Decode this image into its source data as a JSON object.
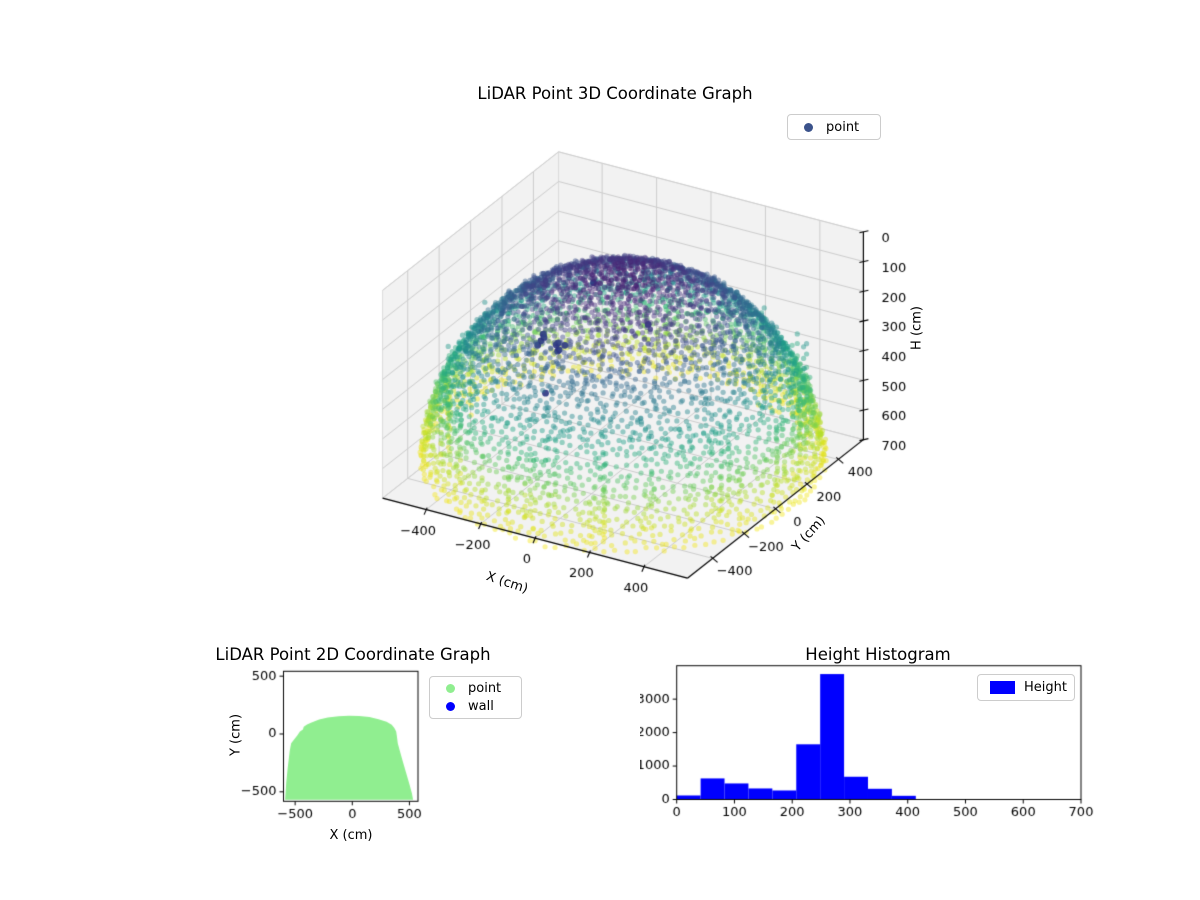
{
  "figure": {
    "background": "#ffffff"
  },
  "viridis_stops": [
    [
      68,
      1,
      84
    ],
    [
      72,
      40,
      120
    ],
    [
      62,
      74,
      137
    ],
    [
      49,
      104,
      142
    ],
    [
      38,
      130,
      142
    ],
    [
      31,
      158,
      137
    ],
    [
      53,
      183,
      121
    ],
    [
      109,
      205,
      89
    ],
    [
      180,
      222,
      44
    ],
    [
      226,
      228,
      24
    ],
    [
      253,
      231,
      37
    ]
  ],
  "chart_data": [
    {
      "id": "plot3d",
      "type": "scatter3d",
      "title": "LiDAR Point 3D Coordinate Graph",
      "xlabel": "X (cm)",
      "ylabel": "Y (cm)",
      "zlabel": "H (cm)",
      "xlim": [
        -560,
        560
      ],
      "ylim": [
        -560,
        560
      ],
      "zlim": [
        0,
        700
      ],
      "zaxis_inverted": true,
      "x_ticks": [
        -400,
        -200,
        0,
        200,
        400
      ],
      "y_ticks": [
        -400,
        -200,
        0,
        200,
        400
      ],
      "z_ticks": [
        0,
        100,
        200,
        300,
        400,
        500,
        600,
        700
      ],
      "legend": {
        "loc": "upper right",
        "entries": [
          {
            "label": "point",
            "marker_color": "#3b528b"
          }
        ]
      },
      "colormap": "viridis",
      "point_alpha": 0.45,
      "grid": true,
      "description": "Dome-shaped LiDAR point cloud of radius ~640 cm centered at the origin, colored by height H with viridis (dark purple near H=0 at the dome apex, teal/green mid-dome, yellow near H=650 at the rim). Vertical columns of wall points ring the rim, and a small cluster of dark navy outlier points sits inside the dome.",
      "dome": {
        "radius": 640,
        "rings": 40,
        "ring_elev_min_deg": 3,
        "ring_elev_max_deg": 87,
        "ring_point_density": 112,
        "area_fill_points": 1500,
        "jitter_r": 22,
        "jitter_z": 18
      },
      "walls": {
        "columns": 72,
        "radius_min": 555,
        "radius_max": 605,
        "z_base_min": 30,
        "z_base_max": 110,
        "dz": 38,
        "points_min": 4,
        "points_max": 9
      },
      "outliers": {
        "color": "#2c3583",
        "cluster_center": [
          -300,
          60,
          370
        ],
        "cluster_spread": [
          45,
          35,
          14
        ],
        "cluster_count": 9,
        "singles": [
          [
            -120,
            20,
            110
          ],
          [
            -250,
            -60,
            480
          ],
          [
            0,
            160,
            280
          ]
        ]
      }
    },
    {
      "id": "plot2d",
      "type": "scatter2d",
      "title": "LiDAR Point 2D Coordinate Graph",
      "xlabel": "X (cm)",
      "ylabel": "Y (cm)",
      "xlim": [
        -602,
        575
      ],
      "ylim": [
        -582,
        542
      ],
      "x_ticks": [
        -500,
        0,
        500
      ],
      "y_ticks": [
        500,
        0,
        -500
      ],
      "legend": {
        "loc": "upper right outside",
        "entries": [
          {
            "label": "point",
            "marker_color": "#90ee90"
          },
          {
            "label": "wall",
            "marker_color": "#0000ff"
          }
        ]
      },
      "point_color": "#90ee90",
      "description": "Dense light-green scatter of LiDAR point XY positions forming one solid dome-shaped blob; blue wall points are hidden beneath the green points.",
      "region_outline": [
        [
          -588,
          -568
        ],
        [
          -578,
          -420
        ],
        [
          -566,
          -300
        ],
        [
          -548,
          -150
        ],
        [
          -535,
          -80
        ],
        [
          -480,
          -10
        ],
        [
          -458,
          22
        ],
        [
          -432,
          38
        ],
        [
          -425,
          62
        ],
        [
          -396,
          82
        ],
        [
          -362,
          98
        ],
        [
          -290,
          126
        ],
        [
          -215,
          142
        ],
        [
          -120,
          153
        ],
        [
          -30,
          158
        ],
        [
          60,
          155
        ],
        [
          150,
          146
        ],
        [
          230,
          128
        ],
        [
          300,
          105
        ],
        [
          345,
          80
        ],
        [
          368,
          52
        ],
        [
          384,
          22
        ],
        [
          390,
          -18
        ],
        [
          398,
          -80
        ],
        [
          417,
          -150
        ],
        [
          444,
          -245
        ],
        [
          474,
          -345
        ],
        [
          502,
          -440
        ],
        [
          522,
          -515
        ],
        [
          532,
          -568
        ]
      ]
    },
    {
      "id": "hist",
      "type": "bar",
      "title": "Height Histogram",
      "xlabel": "",
      "ylabel": "",
      "bar_color": "#0000ff",
      "legend": {
        "loc": "upper right",
        "entries": [
          {
            "label": "Height",
            "color": "#0000ff"
          }
        ]
      },
      "bin_edges": [
        0,
        41.4,
        82.8,
        124.2,
        165.6,
        207,
        248.4,
        289.8,
        331.2,
        372.6,
        414
      ],
      "values": [
        120,
        630,
        480,
        330,
        270,
        1650,
        3750,
        680,
        320,
        110
      ],
      "xlim": [
        0,
        700
      ],
      "ylim": [
        0,
        4000
      ],
      "x_ticks": [
        0,
        100,
        200,
        300,
        400,
        500,
        600,
        700
      ],
      "y_ticks": [
        0,
        1000,
        2000,
        3000
      ]
    }
  ]
}
